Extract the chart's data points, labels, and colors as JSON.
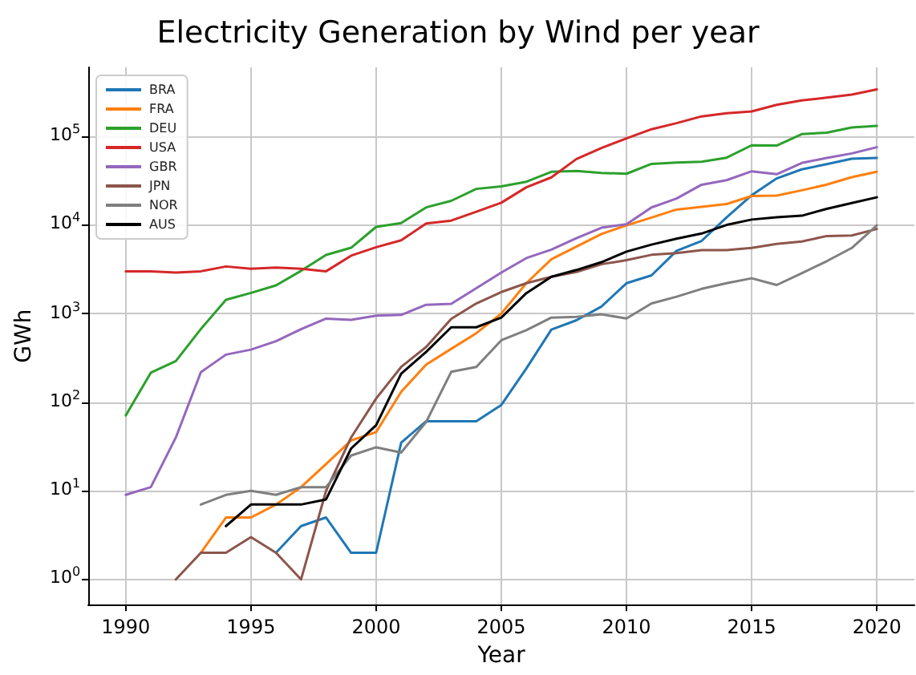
{
  "chart_data": {
    "type": "line",
    "title": "Electricity Generation by Wind per year",
    "xlabel": "Year",
    "ylabel": "GWh",
    "x": [
      1990,
      1991,
      1992,
      1993,
      1994,
      1995,
      1996,
      1997,
      1998,
      1999,
      2000,
      2001,
      2002,
      2003,
      2004,
      2005,
      2006,
      2007,
      2008,
      2009,
      2010,
      2011,
      2012,
      2013,
      2014,
      2015,
      2016,
      2017,
      2018,
      2019,
      2020
    ],
    "series": [
      {
        "name": "BRA",
        "color": "#1f77b4",
        "values": [
          null,
          null,
          null,
          null,
          null,
          null,
          2,
          4,
          5,
          2,
          2,
          35,
          61,
          61,
          61,
          93,
          240,
          660,
          840,
          1200,
          2200,
          2700,
          5100,
          6600,
          12200,
          21600,
          33500,
          42400,
          48500,
          55900,
          57100
        ]
      },
      {
        "name": "FRA",
        "color": "#ff7f0e",
        "values": [
          null,
          null,
          null,
          2,
          5,
          5,
          7,
          11,
          20,
          37,
          46,
          131,
          266,
          400,
          600,
          1000,
          2200,
          4100,
          5700,
          7900,
          9900,
          12100,
          14900,
          16000,
          17200,
          21200,
          21400,
          24600,
          28500,
          34600,
          39800
        ]
      },
      {
        "name": "DEU",
        "color": "#2ca02c",
        "values": [
          71,
          215,
          291,
          670,
          1428,
          1712,
          2078,
          3034,
          4593,
          5528,
          9513,
          10509,
          15786,
          18713,
          25509,
          27229,
          30710,
          39713,
          40574,
          38639,
          37793,
          48883,
          50670,
          51708,
          57357,
          79206,
          78598,
          105693,
          109951,
          126000,
          131000
        ]
      },
      {
        "name": "USA",
        "color": "#d62728",
        "values": [
          3000,
          3000,
          2900,
          3000,
          3400,
          3200,
          3300,
          3200,
          3000,
          4500,
          5600,
          6700,
          10400,
          11200,
          14100,
          17800,
          26600,
          34400,
          55400,
          73900,
          94600,
          120200,
          140800,
          167800,
          181700,
          190700,
          226900,
          254300,
          272700,
          295900,
          337900
        ]
      },
      {
        "name": "GBR",
        "color": "#9467bd",
        "values": [
          9,
          11,
          40,
          218,
          344,
          392,
          488,
          667,
          877,
          850,
          947,
          965,
          1256,
          1285,
          1935,
          2904,
          4225,
          5274,
          7097,
          9304,
          10183,
          15750,
          19846,
          28434,
          32015,
          40310,
          37367,
          50004,
          57116,
          64134,
          75369
        ]
      },
      {
        "name": "JPN",
        "color": "#8c564b",
        "values": [
          null,
          null,
          1,
          2,
          2,
          3,
          2,
          1,
          10,
          40,
          110,
          250,
          420,
          870,
          1300,
          1750,
          2200,
          2600,
          2950,
          3600,
          4000,
          4600,
          4800,
          5200,
          5200,
          5500,
          6100,
          6500,
          7500,
          7600,
          9000
        ]
      },
      {
        "name": "NOR",
        "color": "#7f7f7f",
        "values": [
          null,
          null,
          null,
          7,
          9,
          10,
          9,
          11,
          11,
          25,
          31,
          27,
          60,
          220,
          250,
          500,
          650,
          900,
          920,
          980,
          880,
          1300,
          1550,
          1900,
          2200,
          2500,
          2100,
          2850,
          3900,
          5500,
          9900
        ]
      },
      {
        "name": "AUS",
        "color": "#000000",
        "values": [
          null,
          null,
          null,
          null,
          4,
          7,
          7,
          7,
          8,
          30,
          55,
          210,
          370,
          700,
          700,
          900,
          1700,
          2600,
          3100,
          3800,
          5000,
          6000,
          7000,
          8000,
          10000,
          11500,
          12200,
          12700,
          15200,
          17700,
          20500
        ]
      }
    ],
    "xlim": [
      1988.5,
      2021.5
    ],
    "xticks": [
      1990,
      1995,
      2000,
      2005,
      2010,
      2015,
      2020
    ],
    "ylim": [
      0.52,
      600000
    ],
    "yticks": [
      {
        "value": 1,
        "label": "10$^{0}$"
      },
      {
        "value": 10,
        "label": "10$^{1}$"
      },
      {
        "value": 100,
        "label": "10$^{2}$"
      },
      {
        "value": 1000,
        "label": "10$^{3}$"
      },
      {
        "value": 10000,
        "label": "10$^{4}$"
      },
      {
        "value": 100000,
        "label": "10$^{5}$"
      }
    ],
    "log": "y",
    "grid": true,
    "legend": "top left",
    "marker": "none",
    "line_style": "solid"
  }
}
